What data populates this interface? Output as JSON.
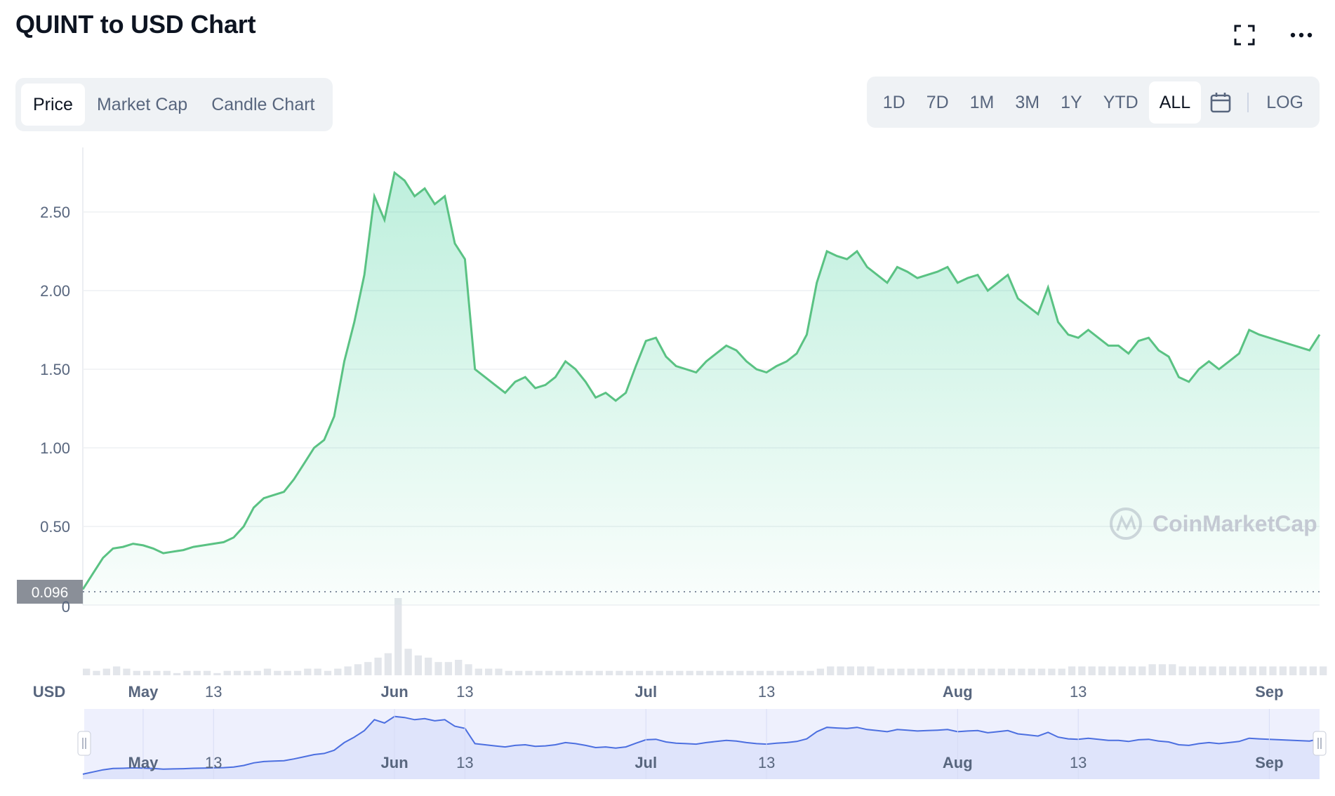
{
  "header": {
    "title": "QUINT to USD Chart"
  },
  "tabs": [
    {
      "label": "Price",
      "active": true
    },
    {
      "label": "Market Cap",
      "active": false
    },
    {
      "label": "Candle Chart",
      "active": false
    }
  ],
  "ranges": [
    {
      "label": "1D",
      "active": false
    },
    {
      "label": "7D",
      "active": false
    },
    {
      "label": "1M",
      "active": false
    },
    {
      "label": "3M",
      "active": false
    },
    {
      "label": "1Y",
      "active": false
    },
    {
      "label": "YTD",
      "active": false
    },
    {
      "label": "ALL",
      "active": true
    }
  ],
  "log_label": "LOG",
  "icons": {
    "fullscreen": "fullscreen-icon",
    "more": "more-options-icon",
    "calendar": "calendar-icon",
    "watermark": "coinmarketcap-logo"
  },
  "colors": {
    "line": "#5ac283",
    "fill": "#16c784",
    "navigator_line": "#4c6fe0",
    "navigator_fill": "#e6eafd",
    "label_bg": "#8a8f98"
  },
  "watermark_text": "CoinMarketCap",
  "chart_data": {
    "type": "area",
    "ylabel": "",
    "xlabel": "",
    "currency_label": "USD",
    "y_ticks": [
      "2.50",
      "2.00",
      "1.50",
      "1.00",
      "0.50"
    ],
    "y_zero_label": "0",
    "ylim": [
      0,
      2.8
    ],
    "start_price_label": "0.096",
    "x_ticks": [
      {
        "label": "May",
        "bold": true,
        "day": 6
      },
      {
        "label": "13",
        "bold": false,
        "day": 13
      },
      {
        "label": "Jun",
        "bold": true,
        "day": 31
      },
      {
        "label": "13",
        "bold": false,
        "day": 38
      },
      {
        "label": "Jul",
        "bold": true,
        "day": 56
      },
      {
        "label": "13",
        "bold": false,
        "day": 68
      },
      {
        "label": "Aug",
        "bold": true,
        "day": 87
      },
      {
        "label": "13",
        "bold": false,
        "day": 99
      },
      {
        "label": "Sep",
        "bold": true,
        "day": 118
      }
    ],
    "x_range_days": [
      0,
      123
    ],
    "series": [
      {
        "x": [
          0,
          1,
          2,
          3,
          4,
          5,
          6,
          7,
          8,
          9,
          10,
          11,
          12,
          13,
          14,
          15,
          16,
          17,
          18,
          19,
          20,
          21,
          22,
          23,
          24,
          25,
          26,
          27,
          28,
          29,
          30,
          31,
          32,
          33,
          34,
          35,
          36,
          37,
          38,
          39,
          40,
          41,
          42,
          43,
          44,
          45,
          46,
          47,
          48,
          49,
          50,
          51,
          52,
          53,
          54,
          55,
          56,
          57,
          58,
          59,
          60,
          61,
          62,
          63,
          64,
          65,
          66,
          67,
          68,
          69,
          70,
          71,
          72,
          73,
          74,
          75,
          76,
          77,
          78,
          79,
          80,
          81,
          82,
          83,
          84,
          85,
          86,
          87,
          88,
          89,
          90,
          91,
          92,
          93,
          94,
          95,
          96,
          97,
          98,
          99,
          100,
          101,
          102,
          103,
          104,
          105,
          106,
          107,
          108,
          109,
          110,
          111,
          112,
          113,
          114,
          115,
          116,
          117,
          118,
          119,
          120,
          121,
          122,
          123
        ],
        "values": [
          0.1,
          0.2,
          0.3,
          0.36,
          0.37,
          0.39,
          0.38,
          0.36,
          0.33,
          0.34,
          0.35,
          0.37,
          0.38,
          0.39,
          0.4,
          0.43,
          0.5,
          0.62,
          0.68,
          0.7,
          0.72,
          0.8,
          0.9,
          1.0,
          1.05,
          1.2,
          1.55,
          1.8,
          2.1,
          2.6,
          2.45,
          2.75,
          2.7,
          2.6,
          2.65,
          2.55,
          2.6,
          2.3,
          2.2,
          1.5,
          1.45,
          1.4,
          1.35,
          1.42,
          1.45,
          1.38,
          1.4,
          1.45,
          1.55,
          1.5,
          1.42,
          1.32,
          1.35,
          1.3,
          1.35,
          1.52,
          1.68,
          1.7,
          1.58,
          1.52,
          1.5,
          1.48,
          1.55,
          1.6,
          1.65,
          1.62,
          1.55,
          1.5,
          1.48,
          1.52,
          1.55,
          1.6,
          1.72,
          2.05,
          2.25,
          2.22,
          2.2,
          2.25,
          2.15,
          2.1,
          2.05,
          2.15,
          2.12,
          2.08,
          2.1,
          2.12,
          2.15,
          2.05,
          2.08,
          2.1,
          2.0,
          2.05,
          2.1,
          1.95,
          1.9,
          1.85,
          2.02,
          1.8,
          1.72,
          1.7,
          1.75,
          1.7,
          1.65,
          1.65,
          1.6,
          1.68,
          1.7,
          1.62,
          1.58,
          1.45,
          1.42,
          1.5,
          1.55,
          1.5,
          1.55,
          1.6,
          1.75,
          1.72,
          1.7,
          1.68,
          1.66,
          1.64,
          1.62,
          1.72
        ]
      }
    ],
    "volume_relative": [
      3,
      2,
      3,
      4,
      3,
      2,
      2,
      2,
      2,
      1,
      2,
      2,
      2,
      1,
      2,
      2,
      2,
      2,
      3,
      2,
      2,
      2,
      3,
      3,
      2,
      3,
      4,
      5,
      6,
      8,
      10,
      35,
      12,
      9,
      8,
      6,
      6,
      7,
      5,
      3,
      3,
      3,
      2,
      2,
      2,
      2,
      2,
      2,
      2,
      2,
      2,
      2,
      2,
      2,
      2,
      2,
      2,
      2,
      2,
      2,
      2,
      2,
      2,
      2,
      2,
      2,
      2,
      2,
      2,
      2,
      2,
      2,
      2,
      3,
      4,
      4,
      4,
      4,
      4,
      3,
      3,
      3,
      3,
      3,
      3,
      3,
      3,
      3,
      3,
      3,
      3,
      3,
      3,
      3,
      3,
      3,
      3,
      3,
      4,
      4,
      4,
      4,
      4,
      4,
      4,
      4,
      5,
      5,
      5,
      4,
      4,
      4,
      4,
      4,
      4,
      4,
      4,
      4,
      4,
      4,
      4,
      4,
      4,
      4
    ]
  }
}
